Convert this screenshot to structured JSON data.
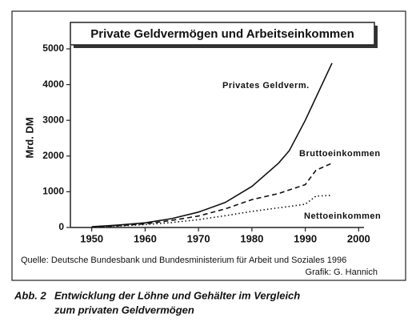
{
  "chart_data": {
    "type": "line",
    "title": "Private Geldvermögen und Arbeitseinkommen",
    "y_label": "Mrd. DM",
    "xlim": [
      1946,
      2001
    ],
    "xticks": [
      1950,
      1960,
      1970,
      1980,
      1990,
      2000
    ],
    "ylim": [
      0,
      5000
    ],
    "yticks": [
      0,
      1000,
      2000,
      3000,
      4000,
      5000
    ],
    "grid": false,
    "series": [
      {
        "name": "Privates Geldverm.",
        "color": "#111111",
        "dash": "solid",
        "x": [
          1950,
          1955,
          1960,
          1965,
          1970,
          1975,
          1980,
          1985,
          1987,
          1990,
          1995
        ],
        "values": [
          20,
          70,
          130,
          250,
          430,
          700,
          1150,
          1800,
          2150,
          3000,
          4600
        ]
      },
      {
        "name": "Bruttoeinkommen",
        "color": "#111111",
        "dash": "dashed",
        "x": [
          1950,
          1955,
          1960,
          1965,
          1970,
          1975,
          1980,
          1985,
          1990,
          1992,
          1995
        ],
        "values": [
          10,
          50,
          100,
          200,
          320,
          520,
          780,
          950,
          1200,
          1600,
          1800
        ]
      },
      {
        "name": "Nettoeinkommen",
        "color": "#111111",
        "dash": "dotted",
        "x": [
          1950,
          1955,
          1960,
          1965,
          1970,
          1975,
          1980,
          1985,
          1990,
          1992,
          1995
        ],
        "values": [
          5,
          40,
          80,
          140,
          220,
          330,
          450,
          550,
          650,
          880,
          900
        ]
      }
    ]
  },
  "source": "Quelle: Deutsche Bundesbank und Bundesministerium für Arbeit und Soziales 1996",
  "credit": "Grafik: G. Hannich",
  "caption": {
    "label": "Abb. 2",
    "lines": [
      "Entwicklung der Löhne und Gehälter im Vergleich",
      "zum privaten Geldvermögen"
    ]
  }
}
